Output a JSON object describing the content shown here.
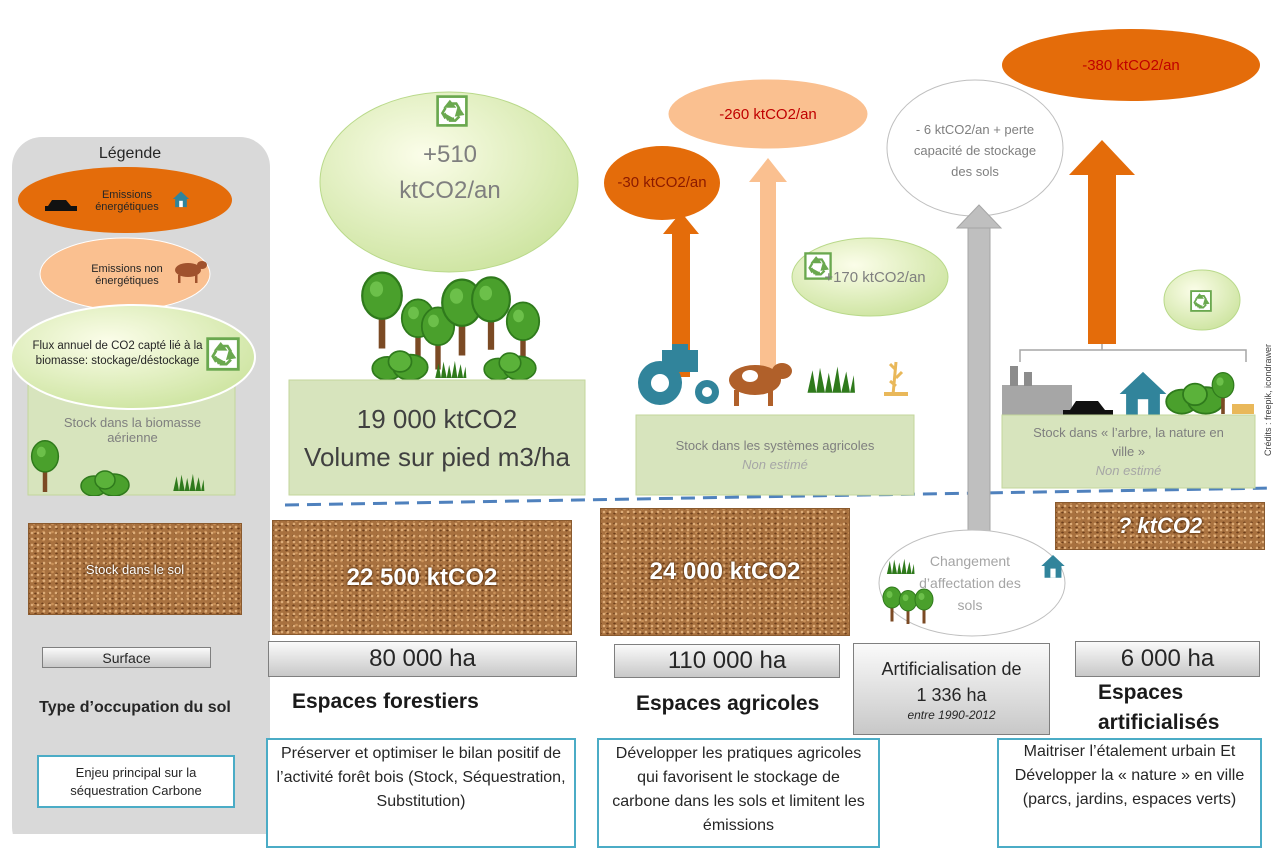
{
  "legend": {
    "title": "Légende",
    "energy_emissions": "Emissions énergétiques",
    "non_energy_emissions": "Emissions non énergétiques",
    "biomass_flux": "Flux annuel de CO2 capté lié à la biomasse: stockage/déstockage",
    "aerial_biomass_stock": "Stock dans la biomasse aérienne",
    "soil_stock": "Stock dans le sol",
    "surface": "Surface",
    "land_use_type": "Type d’occupation du sol",
    "main_issue": "Enjeu principal sur la séquestration Carbone"
  },
  "forest": {
    "biomass_flux": "+510 ktCO2/an",
    "biomass_stock": "19 000 ktCO2",
    "biomass_volume": "Volume sur pied m3/ha",
    "soil_stock": "22 500 ktCO2",
    "surface": "80 000 ha",
    "name": "Espaces forestiers",
    "issue": "Préserver et optimiser le bilan positif de l’activité forêt bois (Stock, Séquestration, Substitution)"
  },
  "agriculture": {
    "energy_emissions": "-30 ktCO2/an",
    "non_energy_emissions": "-260 ktCO2/an",
    "biomass_flux": "+170 ktCO2/an",
    "biomass_stock": "Stock dans les systèmes agricoles",
    "biomass_note": "Non estimé",
    "soil_stock": "24 000 ktCO2",
    "surface": "110 000 ha",
    "name": "Espaces agricoles",
    "issue": "Développer les pratiques agricoles qui favorisent le stockage de carbone dans les sols et limitent les émissions"
  },
  "land_use_change": {
    "emissions": "- 6 ktCO2/an + perte capacité de stockage des sols",
    "label": "Changement d’affectation des sols",
    "artificialisation": "Artificialisation de 1 336 ha",
    "period": "entre 1990-2012"
  },
  "artificial": {
    "energy_emissions": "-380 ktCO2/an",
    "biomass_stock": "Stock dans « l’arbre, la nature en ville »",
    "biomass_note": "Non estimé",
    "soil_stock": "? ktCO2",
    "surface": "6 000 ha",
    "name": "Espaces artificialisés",
    "issue": "Maitriser l’étalement urbain Et Développer la « nature » en ville (parcs, jardins, espaces verts)"
  },
  "credits": "Crédits : freepik, icondrawer"
}
